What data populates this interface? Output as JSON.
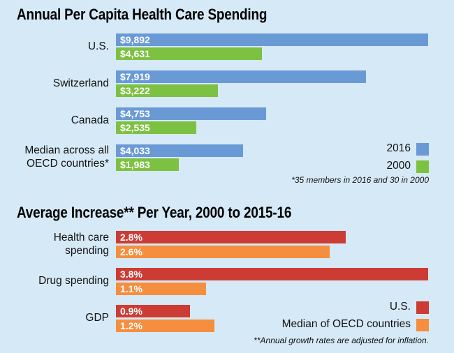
{
  "chart_data": [
    {
      "type": "bar",
      "orientation": "horizontal",
      "title": "Annual Per Capita Health Care Spending",
      "categories": [
        "U.S.",
        "Switzerland",
        "Canada",
        "Median across all OECD countries*"
      ],
      "category_lines": [
        [
          "U.S."
        ],
        [
          "Switzerland"
        ],
        [
          "Canada"
        ],
        [
          "Median across all",
          "OECD countries*"
        ]
      ],
      "series": [
        {
          "name": "2016",
          "color": "#6a9ad6",
          "values": [
            9892,
            7919,
            4753,
            4033
          ],
          "labels": [
            "$9,892",
            "$7,919",
            "$4,753",
            "$4,033"
          ]
        },
        {
          "name": "2000",
          "color": "#7dc142",
          "values": [
            4631,
            3222,
            2535,
            1983
          ],
          "labels": [
            "$4,631",
            "$3,222",
            "$2,535",
            "$1,983"
          ]
        }
      ],
      "xlim": [
        0,
        9892
      ],
      "legend": "right",
      "note": "*35 members in 2016 and 30 in 2000"
    },
    {
      "type": "bar",
      "orientation": "horizontal",
      "title": "Average Increase** Per Year, 2000 to 2015-16",
      "categories": [
        "Health care spending",
        "Drug spending",
        "GDP"
      ],
      "category_lines": [
        [
          "Health care",
          "spending"
        ],
        [
          "Drug spending"
        ],
        [
          "GDP"
        ]
      ],
      "series": [
        {
          "name": "U.S.",
          "color": "#cc3c34",
          "values": [
            2.8,
            3.8,
            0.9
          ],
          "labels": [
            "2.8%",
            "3.8%",
            "0.9%"
          ]
        },
        {
          "name": "Median of OECD countries",
          "color": "#f58e3e",
          "values": [
            2.6,
            1.1,
            1.2
          ],
          "labels": [
            "2.6%",
            "1.1%",
            "1.2%"
          ]
        }
      ],
      "xlim": [
        0,
        3.8
      ],
      "legend": "right",
      "note": "**Annual growth rates are adjusted for inflation."
    }
  ]
}
